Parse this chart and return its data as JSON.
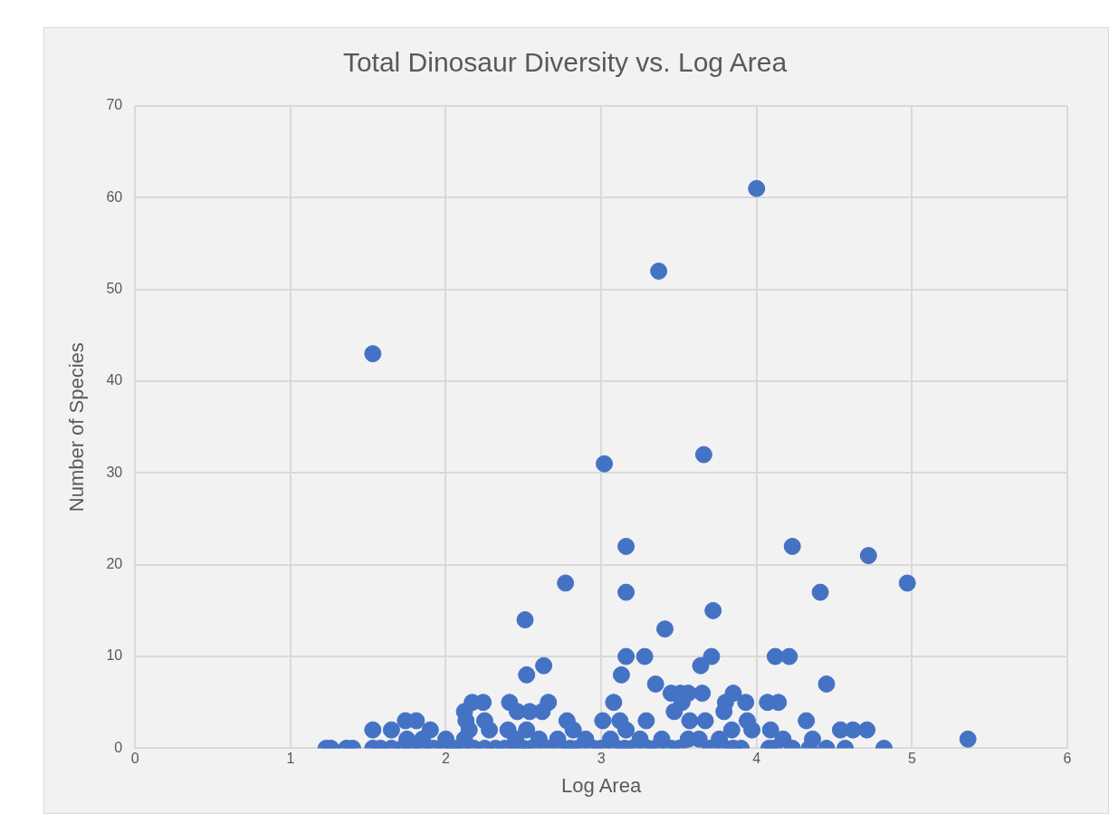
{
  "chart_data": {
    "type": "scatter",
    "title": "Total Dinosaur Diversity vs. Log Area",
    "xlabel": "Log Area",
    "ylabel": "Number of Species",
    "x": [
      1.53,
      4.0,
      3.37,
      3.02,
      3.66,
      3.16,
      4.23,
      4.72,
      4.97,
      2.77,
      3.16,
      4.41,
      3.72,
      2.51,
      3.41,
      3.16,
      3.28,
      3.71,
      4.12,
      4.21,
      2.63,
      3.64,
      2.52,
      3.13,
      3.35,
      4.45,
      3.45,
      3.51,
      3.56,
      3.65,
      3.85,
      2.17,
      2.24,
      2.41,
      2.66,
      3.08,
      3.52,
      3.8,
      3.93,
      4.07,
      4.14,
      2.12,
      2.46,
      2.54,
      2.62,
      3.47,
      3.79,
      2.13,
      2.25,
      1.74,
      1.81,
      2.78,
      3.01,
      3.12,
      3.29,
      3.57,
      3.67,
      3.94,
      4.32,
      1.53,
      1.65,
      1.9,
      2.28,
      2.4,
      2.82,
      3.16,
      3.84,
      3.97,
      4.09,
      4.54,
      4.62,
      4.71,
      2.15,
      2.52,
      2.0,
      2.12,
      2.72,
      3.06,
      3.25,
      3.39,
      3.56,
      3.76,
      4.17,
      4.36,
      5.36,
      1.75,
      1.85,
      2.45,
      2.6,
      2.9,
      3.63,
      1.23,
      1.26,
      1.36,
      1.4,
      1.53,
      1.58,
      1.65,
      1.72,
      1.78,
      1.85,
      1.92,
      2.0,
      2.05,
      2.1,
      2.18,
      2.25,
      2.32,
      2.38,
      2.45,
      2.5,
      2.55,
      2.65,
      2.75,
      2.8,
      2.85,
      2.95,
      3.0,
      3.1,
      3.15,
      3.2,
      3.3,
      3.35,
      3.45,
      3.5,
      3.7,
      3.8,
      3.85,
      3.9,
      4.08,
      4.11,
      4.23,
      4.34,
      4.45,
      4.57,
      4.82
    ],
    "values": [
      43,
      61,
      52,
      31,
      32,
      22,
      22,
      21,
      18,
      18,
      17,
      17,
      15,
      14,
      13,
      10,
      10,
      10,
      10,
      10,
      9,
      9,
      8,
      8,
      7,
      7,
      6,
      6,
      6,
      6,
      6,
      5,
      5,
      5,
      5,
      5,
      5,
      5,
      5,
      5,
      5,
      4,
      4,
      4,
      4,
      4,
      4,
      3,
      3,
      3,
      3,
      3,
      3,
      3,
      3,
      3,
      3,
      3,
      3,
      2,
      2,
      2,
      2,
      2,
      2,
      2,
      2,
      2,
      2,
      2,
      2,
      2,
      2,
      2,
      1,
      1,
      1,
      1,
      1,
      1,
      1,
      1,
      1,
      1,
      1,
      1,
      1,
      1,
      1,
      1,
      1,
      0,
      0,
      0,
      0,
      0,
      0,
      0,
      0,
      0,
      0,
      0,
      0,
      0,
      0,
      0,
      0,
      0,
      0,
      0,
      0,
      0,
      0,
      0,
      0,
      0,
      0,
      0,
      0,
      0,
      0,
      0,
      0,
      0,
      0,
      0,
      0,
      0,
      0,
      0,
      0,
      0,
      0,
      0,
      0,
      0
    ],
    "color": "#4472c4",
    "marker": "circle",
    "grid": true,
    "legend": false,
    "xlim": [
      0,
      6
    ],
    "xticks": [
      0,
      1,
      2,
      3,
      4,
      5,
      6
    ],
    "ylim": [
      0,
      70
    ],
    "yticks": [
      0,
      10,
      20,
      30,
      40,
      50,
      60,
      70
    ]
  }
}
